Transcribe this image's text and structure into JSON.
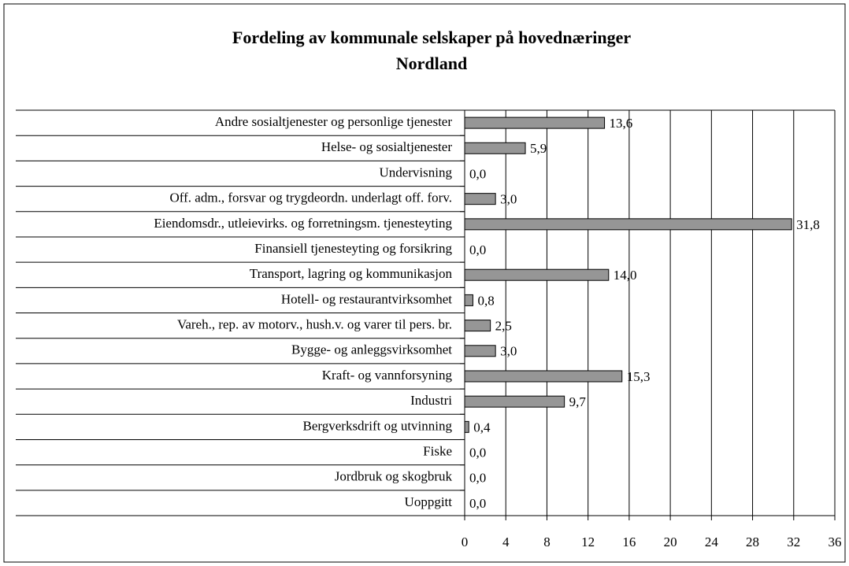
{
  "chart_data": {
    "type": "bar",
    "orientation": "horizontal",
    "title": [
      "Fordeling av kommunale selskaper på hovednæringer",
      "Nordland"
    ],
    "categories": [
      "Andre sosialtjenester og personlige tjenester",
      "Helse- og sosialtjenester",
      "Undervisning",
      "Off. adm., forsvar og trygdeordn. underlagt off. forv.",
      "Eiendomsdr., utleievirks. og forretningsm. tjenesteyting",
      "Finansiell tjenesteyting og forsikring",
      "Transport, lagring og kommunikasjon",
      "Hotell- og restaurantvirksomhet",
      "Vareh., rep. av motorv., hush.v. og varer til pers. br.",
      "Bygge- og anleggsvirksomhet",
      "Kraft- og vannforsyning",
      "Industri",
      "Bergverksdrift og utvinning",
      "Fiske",
      "Jordbruk og skogbruk",
      "Uoppgitt"
    ],
    "values": [
      13.6,
      5.9,
      0.0,
      3.0,
      31.8,
      0.0,
      14.0,
      0.8,
      2.5,
      3.0,
      15.3,
      9.7,
      0.4,
      0.0,
      0.0,
      0.0
    ],
    "value_labels": [
      "13,6",
      "5,9",
      "0,0",
      "3,0",
      "31,8",
      "0,0",
      "14,0",
      "0,8",
      "2,5",
      "3,0",
      "15,3",
      "9,7",
      "0,4",
      "0,0",
      "0,0",
      "0,0"
    ],
    "color": "#969696",
    "xlim": [
      0,
      36
    ],
    "xticks": [
      0,
      4,
      8,
      12,
      16,
      20,
      24,
      28,
      32,
      36
    ],
    "grid": true
  }
}
